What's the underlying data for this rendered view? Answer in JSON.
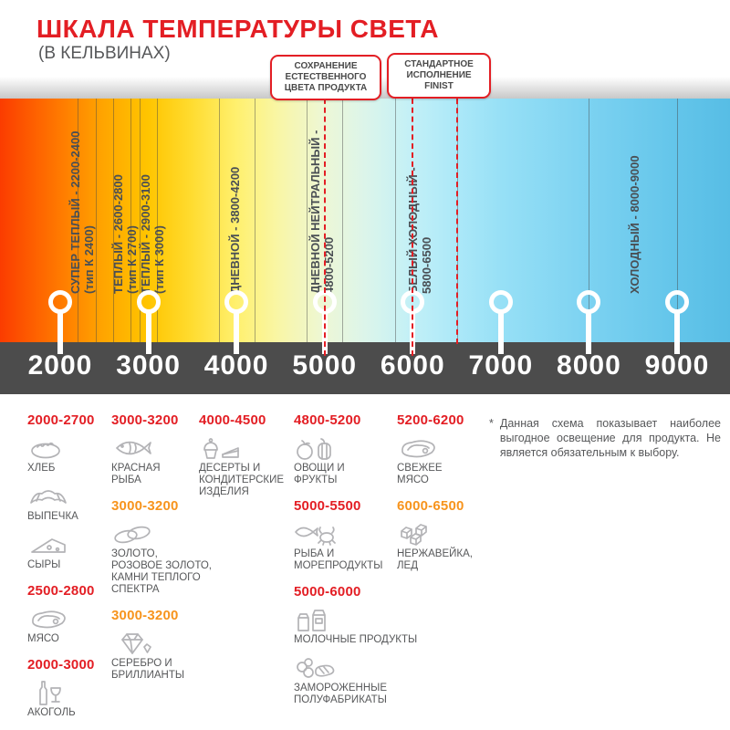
{
  "header": {
    "title": "ШКАЛА ТЕМПЕРАТУРЫ СВЕТА",
    "subtitle": "(В КЕЛЬВИНАХ)"
  },
  "colors": {
    "accent_red": "#e31e24",
    "accent_orange": "#f7941d",
    "scale_band_dark": "#4c4c4c"
  },
  "callouts": [
    {
      "lines": [
        "СОХРАНЕНИЕ",
        "ЕСТЕСТВЕННОГО",
        "ЦВЕТА ПРОДУКТА"
      ],
      "connector_values": [
        5000
      ]
    },
    {
      "lines": [
        "СТАНДАРТНОЕ",
        "ИСПОЛНЕНИЕ",
        "FINIST"
      ],
      "connector_values": [
        6000,
        6500
      ]
    }
  ],
  "scale": {
    "min": 2000,
    "max": 9000,
    "ticks": [
      {
        "v": 2000,
        "label": "2000"
      },
      {
        "v": 3000,
        "label": "3000"
      },
      {
        "v": 4000,
        "label": "4000"
      },
      {
        "v": 5000,
        "label": "5000"
      },
      {
        "v": 6000,
        "label": "6000"
      },
      {
        "v": 7000,
        "label": "7000"
      },
      {
        "v": 8000,
        "label": "8000"
      },
      {
        "v": 9000,
        "label": "9000"
      }
    ],
    "boundary_values": [
      2200,
      2400,
      2600,
      2800,
      2900,
      3100,
      3800,
      4200,
      4800,
      5200,
      5800,
      6500,
      8000,
      9000
    ]
  },
  "bands": [
    {
      "line1": "СУПЕР ТЕПЛЫЙ - 2200-2400",
      "line2": "(тип К 2400)"
    },
    {
      "line1": "ТЕПЛЫЙ - 2600-2800",
      "line2": "(тип К 2700)"
    },
    {
      "line1": "ТЕПЛЫЙ - 2900-3100",
      "line2": "(тип К 3000)"
    },
    {
      "line1": "ДНЕВНОЙ - 3800-4200",
      "line2": ""
    },
    {
      "line1": "ДНЕВНОЙ НЕЙТРАЛЬНЫЙ -",
      "line2": "4800-5200"
    },
    {
      "line1": "БЕЛЫЙ ХОЛОДНЫЙ -",
      "line2": "5800-6500"
    },
    {
      "line1": "ХОЛОДНЫЙ - 8000-9000",
      "line2": ""
    }
  ],
  "legend": {
    "columns": [
      {
        "groups": [
          {
            "range": "2000-2700",
            "tone": "red",
            "items": [
              {
                "icon": "bread-icon",
                "label": "ХЛЕБ"
              },
              {
                "icon": "croissant-icon",
                "label": "ВЫПЕЧКА"
              },
              {
                "icon": "cheese-icon",
                "label": "СЫРЫ"
              }
            ]
          },
          {
            "range": "2500-2800",
            "tone": "red",
            "items": [
              {
                "icon": "meat-icon",
                "label": "МЯСО"
              }
            ]
          },
          {
            "range": "2000-3000",
            "tone": "red",
            "items": [
              {
                "icon": "alcohol-icon",
                "label": "АКОГОЛЬ"
              }
            ]
          }
        ]
      },
      {
        "groups": [
          {
            "range": "3000-3200",
            "tone": "red",
            "items": [
              {
                "icon": "fish-icon",
                "label": "КРАСНАЯ\nРЫБА"
              }
            ]
          },
          {
            "range": "3000-3200",
            "tone": "orange",
            "items": [
              {
                "icon": "rings-icon",
                "label": "ЗОЛОТО,\nРОЗОВОЕ ЗОЛОТО,\nКАМНИ ТЕПЛОГО\nСПЕКТРА"
              }
            ]
          },
          {
            "range": "3000-3200",
            "tone": "orange",
            "items": [
              {
                "icon": "diamond-icon",
                "label": "СЕРЕБРО И\nБРИЛЛИАНТЫ"
              }
            ]
          }
        ]
      },
      {
        "groups": [
          {
            "range": "4000-4500",
            "tone": "red",
            "items": [
              {
                "icon": "desserts-icon",
                "label": "ДЕСЕРТЫ И\nКОНДИТЕРСКИЕ\nИЗДЕЛИЯ"
              }
            ]
          }
        ]
      },
      {
        "groups": [
          {
            "range": "4800-5200",
            "tone": "red",
            "items": [
              {
                "icon": "vegetables-icon",
                "label": "ОВОЩИ И\nФРУКТЫ"
              }
            ]
          },
          {
            "range": "5000-5500",
            "tone": "red",
            "items": [
              {
                "icon": "seafood-icon",
                "label": "РЫБА И\nМОРЕПРОДУКТЫ"
              }
            ]
          },
          {
            "range": "5000-6000",
            "tone": "red",
            "items": [
              {
                "icon": "dairy-icon",
                "label": "МОЛОЧНЫЕ ПРОДУКТЫ"
              },
              {
                "icon": "frozen-icon",
                "label": "ЗАМОРОЖЕННЫЕ\nПОЛУФАБРИКАТЫ"
              }
            ]
          }
        ]
      },
      {
        "groups": [
          {
            "range": "5200-6200",
            "tone": "red",
            "items": [
              {
                "icon": "fresh-meat-icon",
                "label": "СВЕЖЕЕ\nМЯСО"
              }
            ]
          },
          {
            "range": "6000-6500",
            "tone": "orange",
            "items": [
              {
                "icon": "ice-icon",
                "label": "НЕРЖАВЕЙКА,\nЛЕД"
              }
            ]
          }
        ]
      }
    ]
  },
  "footnote": {
    "star": "*",
    "text": "Данная схема показывает наиболее выгодное освещение для продукта. Не является обязательным к выбору."
  }
}
